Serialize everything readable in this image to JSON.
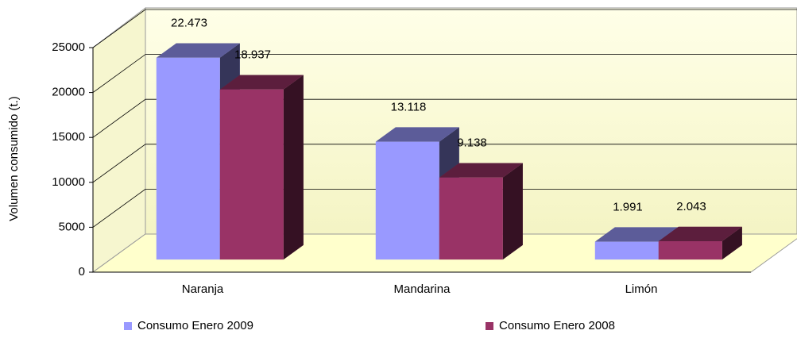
{
  "chart_data": {
    "type": "bar3d",
    "y_label": "Volumen consumido (t.)",
    "categories": [
      "Naranja",
      "Mandarina",
      "Limón"
    ],
    "series": [
      {
        "name": "Consumo Enero 2009",
        "color": "#9999ff",
        "values": [
          22473,
          13118,
          1991
        ],
        "value_labels": [
          "22.473",
          "13.118",
          "1.991"
        ]
      },
      {
        "name": "Consumo Enero 2008",
        "color": "#993366",
        "values": [
          18937,
          9138,
          2043
        ],
        "value_labels": [
          "18.937",
          "9.138",
          "2.043"
        ]
      }
    ],
    "ylim": [
      0,
      25000
    ],
    "yticks": [
      0,
      5000,
      10000,
      15000,
      20000,
      25000
    ],
    "grid": true
  }
}
